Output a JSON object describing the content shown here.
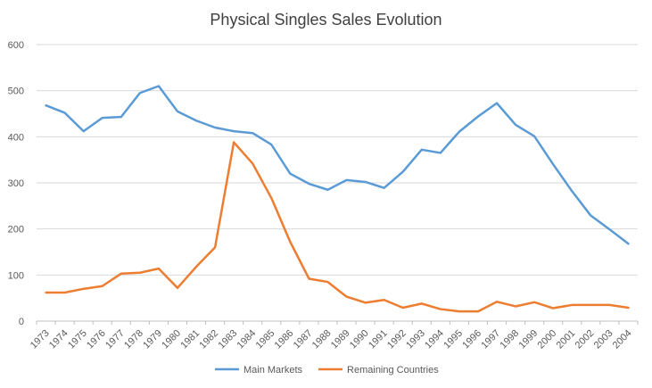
{
  "chart_data": {
    "type": "line",
    "title": "Physical Singles Sales Evolution",
    "xlabel": "",
    "ylabel": "",
    "ylim": [
      0,
      600
    ],
    "yticks": [
      0,
      100,
      200,
      300,
      400,
      500,
      600
    ],
    "grid": true,
    "legend": "bottom",
    "categories": [
      "1973",
      "1974",
      "1975",
      "1976",
      "1977",
      "1978",
      "1979",
      "1980",
      "1981",
      "1982",
      "1983",
      "1984",
      "1985",
      "1986",
      "1987",
      "1988",
      "1989",
      "1990",
      "1991",
      "1992",
      "1993",
      "1994",
      "1995",
      "1996",
      "1997",
      "1998",
      "1999",
      "2000",
      "2001",
      "2002",
      "2003",
      "2004"
    ],
    "series": [
      {
        "name": "Main Markets",
        "color": "#5b9bd5",
        "values": [
          468,
          452,
          412,
          441,
          443,
          495,
          510,
          455,
          435,
          420,
          412,
          408,
          383,
          320,
          298,
          285,
          306,
          302,
          289,
          324,
          372,
          365,
          411,
          444,
          473,
          426,
          401,
          340,
          282,
          229,
          199,
          168
        ]
      },
      {
        "name": "Remaining Countries",
        "color": "#ed7d31",
        "values": [
          62,
          62,
          70,
          76,
          103,
          105,
          114,
          72,
          118,
          160,
          388,
          342,
          267,
          172,
          92,
          85,
          53,
          40,
          46,
          29,
          38,
          26,
          21,
          21,
          42,
          32,
          41,
          28,
          35,
          35,
          35,
          29
        ]
      }
    ]
  }
}
